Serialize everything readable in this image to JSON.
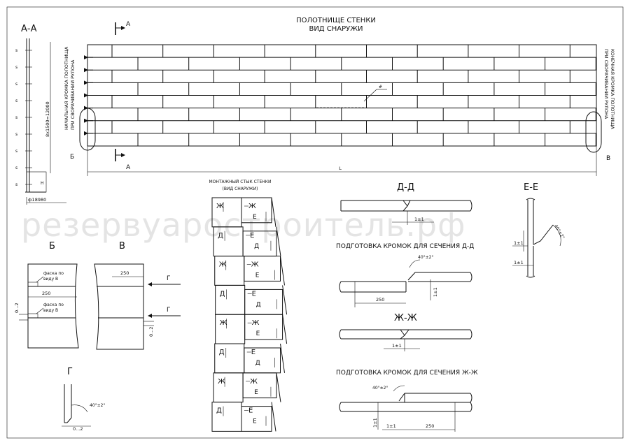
{
  "main_view": {
    "title_line1": "ПОЛОТНИЩЕ СТЕНКИ",
    "title_line2": "ВИД СНАРУЖИ",
    "left_edge_line1": "НАЧАЛЬНАЯ КРОМКА ПОЛОТНИЩА",
    "left_edge_line2": "ПРИ СВОРАЧИВАНИИ РУЛОНА",
    "right_edge_line1": "КОНЕЧНАЯ КРОМКА ПОЛОТНИЩА",
    "right_edge_line2": "ПРИ СВОРАЧИВАНИИ РУЛОНА",
    "length_label": "L",
    "callout_B": "Б",
    "callout_V": "В",
    "cut_A": "А",
    "weld_mark": "#"
  },
  "section_aa": {
    "title": "А-А",
    "height_dim": "8х1500=12000",
    "diameter": "ф18980",
    "s_labels": [
      "s",
      "s",
      "s",
      "s",
      "s",
      "s",
      "s",
      "s",
      "s"
    ],
    "h_label": "H"
  },
  "assembly": {
    "title_line1": "МОНТАЖНЫЙ СТЫК СТЕНКИ",
    "title_line2": "(ВИД СНАРУЖИ)",
    "left_marks": [
      "Ж",
      "Д",
      "Ж",
      "Д",
      "Ж",
      "Д",
      "Ж",
      "Д"
    ],
    "mid_marks": [
      "Ж",
      "Е",
      "Ж",
      "Е",
      "Ж",
      "Е",
      "Ж",
      "Е"
    ],
    "right_marks": [
      "Е",
      "Д",
      "Е",
      "Д",
      "Е",
      "Д",
      "Е",
      "Е"
    ]
  },
  "detail_b": {
    "title": "Б",
    "chamfer1_line1": "фаска по",
    "chamfer1_line2": "виду В",
    "dim_250": "250",
    "chamfer2_line1": "фаска по",
    "chamfer2_line2": "виду В",
    "gap": "0...2"
  },
  "detail_v": {
    "title": "В",
    "dim_250": "250",
    "arrow_g": "Г",
    "gap": "0...2"
  },
  "detail_g": {
    "title": "Г",
    "angle": "40°±2°",
    "gap": "0...2"
  },
  "section_dd": {
    "title": "Д-Д",
    "tol": "1±1"
  },
  "section_ee": {
    "title": "Е-Е",
    "angle": "40°±2°",
    "tol1": "1±1",
    "tol2": "1±1"
  },
  "prep_dd": {
    "title": "ПОДГОТОВКА КРОМОК ДЛЯ СЕЧЕНИЯ Д-Д",
    "angle": "40°±2°",
    "dim_250": "250",
    "tol": "1±1"
  },
  "section_zhzh": {
    "title": "Ж-Ж",
    "tol": "1±1"
  },
  "prep_zhzh": {
    "title": "ПОДГОТОВКА КРОМОК ДЛЯ СЕЧЕНИЯ Ж-Ж",
    "angle": "40°±2°",
    "tol1": "1±1",
    "tol2": "1±1",
    "dim_250": "250"
  },
  "watermark": "резервуаростроитель.рф"
}
